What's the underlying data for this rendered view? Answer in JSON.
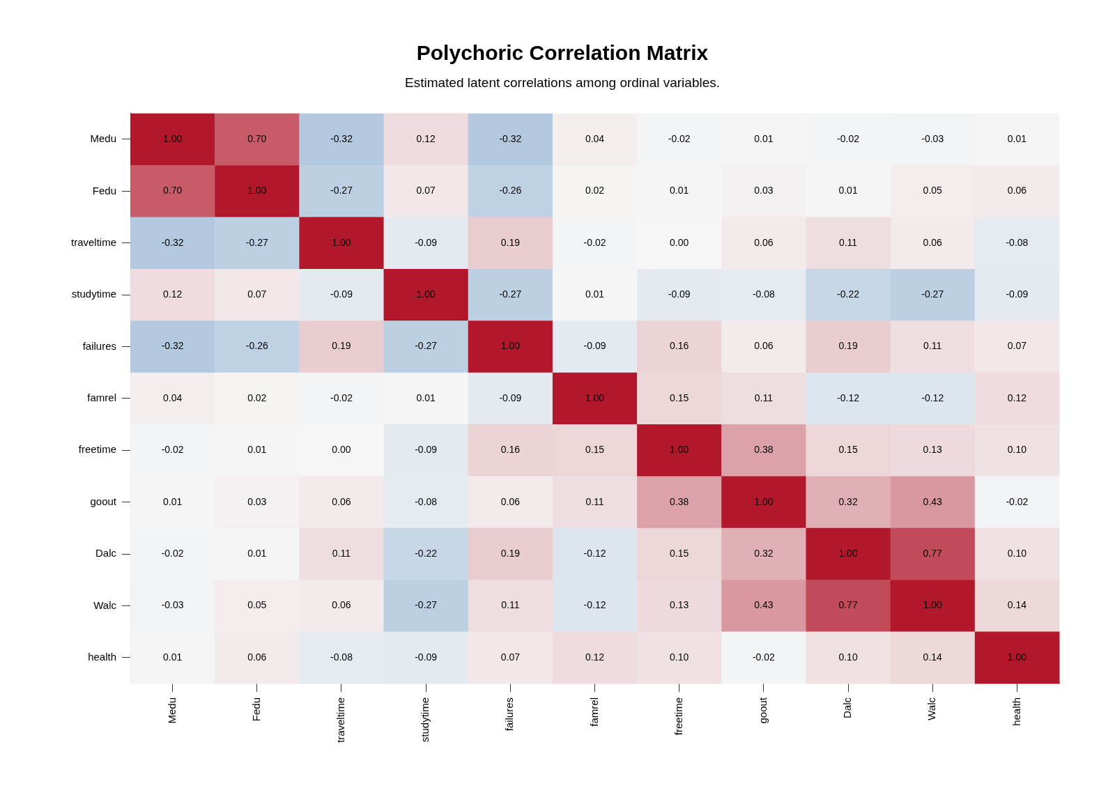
{
  "chart_data": {
    "type": "heatmap",
    "title": "Polychoric Correlation Matrix",
    "subtitle": "Estimated latent correlations among ordinal variables.",
    "categories": [
      "Medu",
      "Fedu",
      "traveltime",
      "studytime",
      "failures",
      "famrel",
      "freetime",
      "goout",
      "Dalc",
      "Walc",
      "health"
    ],
    "y_categories": [
      "Medu",
      "Fedu",
      "traveltime",
      "studytime",
      "failures",
      "famrel",
      "freetime",
      "goout",
      "Dalc",
      "Walc",
      "health"
    ],
    "cells": [
      [
        1.0,
        0.7,
        -0.32,
        0.12,
        -0.32,
        0.04,
        -0.02,
        0.01,
        -0.02,
        -0.03,
        0.01
      ],
      [
        0.7,
        1.0,
        -0.27,
        0.07,
        -0.26,
        0.02,
        0.01,
        0.03,
        0.01,
        0.05,
        0.06
      ],
      [
        -0.32,
        -0.27,
        1.0,
        -0.09,
        0.19,
        -0.02,
        0.0,
        0.06,
        0.11,
        0.06,
        -0.08
      ],
      [
        0.12,
        0.07,
        -0.09,
        1.0,
        -0.27,
        0.01,
        -0.09,
        -0.08,
        -0.22,
        -0.27,
        -0.09
      ],
      [
        -0.32,
        -0.26,
        0.19,
        -0.27,
        1.0,
        -0.09,
        0.16,
        0.06,
        0.19,
        0.11,
        0.07
      ],
      [
        0.04,
        0.02,
        -0.02,
        0.01,
        -0.09,
        1.0,
        0.15,
        0.11,
        -0.12,
        -0.12,
        0.12
      ],
      [
        -0.02,
        0.01,
        0.0,
        -0.09,
        0.16,
        0.15,
        1.0,
        0.38,
        0.15,
        0.13,
        0.1
      ],
      [
        0.01,
        0.03,
        0.06,
        -0.08,
        0.06,
        0.11,
        0.38,
        1.0,
        0.32,
        0.43,
        -0.02
      ],
      [
        -0.02,
        0.01,
        0.11,
        -0.22,
        0.19,
        -0.12,
        0.15,
        0.32,
        1.0,
        0.77,
        0.1
      ],
      [
        -0.03,
        0.05,
        0.06,
        -0.27,
        0.11,
        -0.12,
        0.13,
        0.43,
        0.77,
        1.0,
        0.14
      ],
      [
        0.01,
        0.06,
        -0.08,
        -0.09,
        0.07,
        0.12,
        0.1,
        -0.02,
        0.1,
        0.14,
        1.0
      ]
    ],
    "cell_labels": [
      [
        "1.00",
        "0.70",
        "-0.32",
        "0.12",
        "-0.32",
        "0.04",
        "-0.02",
        "0.01",
        "-0.02",
        "-0.03",
        "0.01"
      ],
      [
        "0.70",
        "1.00",
        "-0.27",
        "0.07",
        "-0.26",
        "0.02",
        "0.01",
        "0.03",
        "0.01",
        "0.05",
        "0.06"
      ],
      [
        "-0.32",
        "-0.27",
        "1.00",
        "-0.09",
        "0.19",
        "-0.02",
        "0.00",
        "0.06",
        "0.11",
        "0.06",
        "-0.08"
      ],
      [
        "0.12",
        "0.07",
        "-0.09",
        "1.00",
        "-0.27",
        "0.01",
        "-0.09",
        "-0.08",
        "-0.22",
        "-0.27",
        "-0.09"
      ],
      [
        "-0.32",
        "-0.26",
        "0.19",
        "-0.27",
        "1.00",
        "-0.09",
        "0.16",
        "0.06",
        "0.19",
        "0.11",
        "0.07"
      ],
      [
        "0.04",
        "0.02",
        "-0.02",
        "0.01",
        "-0.09",
        "1.00",
        "0.15",
        "0.11",
        "-0.12",
        "-0.12",
        "0.12"
      ],
      [
        "-0.02",
        "0.01",
        "0.00",
        "-0.09",
        "0.16",
        "0.15",
        "1.00",
        "0.38",
        "0.15",
        "0.13",
        "0.10"
      ],
      [
        "0.01",
        "0.03",
        "0.06",
        "-0.08",
        "0.06",
        "0.11",
        "0.38",
        "1.00",
        "0.32",
        "0.43",
        "-0.02"
      ],
      [
        "-0.02",
        "0.01",
        "0.11",
        "-0.22",
        "0.19",
        "-0.12",
        "0.15",
        "0.32",
        "1.00",
        "0.77",
        "0.10"
      ],
      [
        "-0.03",
        "0.05",
        "0.06",
        "-0.27",
        "0.11",
        "-0.12",
        "0.13",
        "0.43",
        "0.77",
        "1.00",
        "0.14"
      ],
      [
        "0.01",
        "0.06",
        "-0.08",
        "-0.09",
        "0.07",
        "0.12",
        "0.10",
        "-0.02",
        "0.10",
        "0.14",
        "1.00"
      ]
    ],
    "data_labels": true,
    "grid": false,
    "legend": false
  }
}
